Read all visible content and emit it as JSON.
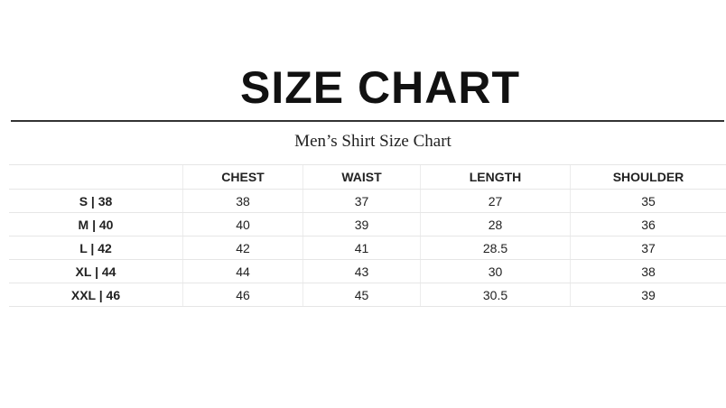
{
  "title": "SIZE CHART",
  "subtitle": "Men’s Shirt Size Chart",
  "table": {
    "headers": [
      "",
      "CHEST",
      "WAIST",
      "LENGTH",
      "SHOULDER"
    ],
    "rows": [
      [
        "S | 38",
        "38",
        "37",
        "27",
        "35"
      ],
      [
        "M | 40",
        "40",
        "39",
        "28",
        "36"
      ],
      [
        "L | 42",
        "42",
        "41",
        "28.5",
        "37"
      ],
      [
        "XL | 44",
        "44",
        "43",
        "30",
        "38"
      ],
      [
        "XXL | 46",
        "46",
        "45",
        "30.5",
        "39"
      ]
    ]
  }
}
